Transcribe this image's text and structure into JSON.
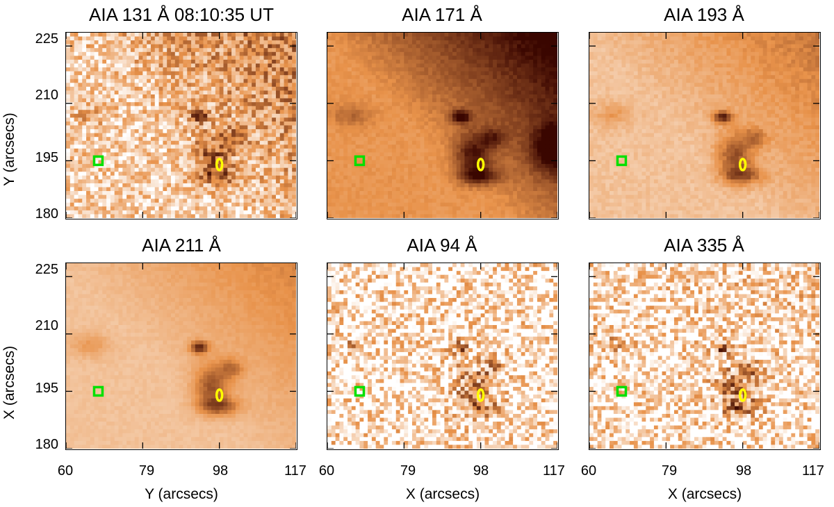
{
  "panels": [
    {
      "id": "p131",
      "title": "AIA 131 Å 08:10:35 UT",
      "noise": 0.55,
      "bg": 0.22,
      "haze": 0.35
    },
    {
      "id": "p171",
      "title": "AIA 171 Å",
      "noise": 0.08,
      "bg": 0.48,
      "haze": 0.55
    },
    {
      "id": "p193",
      "title": "AIA 193 Å",
      "noise": 0.1,
      "bg": 0.28,
      "haze": 0.3
    },
    {
      "id": "p211",
      "title": "AIA 211 Å",
      "noise": 0.06,
      "bg": 0.28,
      "haze": 0.25
    },
    {
      "id": "p94",
      "title": "AIA 94 Å",
      "noise": 0.85,
      "bg": 0.1,
      "haze": 0.0
    },
    {
      "id": "p335",
      "title": "AIA 335 Å",
      "noise": 0.8,
      "bg": 0.12,
      "haze": 0.05
    }
  ],
  "axes": {
    "ytick_labels": [
      "225",
      "210",
      "195",
      "180"
    ],
    "xtick_labels": [
      "60",
      "79",
      "98",
      "117"
    ],
    "ylabels": [
      "Y (arcsecs)",
      "X (arcsecs)"
    ],
    "xlabels": [
      "Y (arcsecs)",
      "X (arcsecs)",
      "X (arcsecs)"
    ]
  },
  "markers": {
    "green_box": {
      "x": 68,
      "y": 195,
      "color": "#00e000"
    },
    "yellow_ellipse": {
      "x": 98,
      "y": 194,
      "color": "#ffff00"
    }
  },
  "colors": {
    "low": "#ffffff",
    "mid": "#e8924a",
    "high": "#3a0600"
  }
}
